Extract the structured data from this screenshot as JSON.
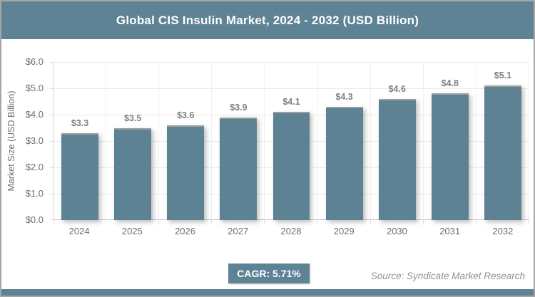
{
  "header": {
    "title": "Global CIS Insulin Market, 2024 - 2032 (USD Billion)"
  },
  "chart_data": {
    "type": "bar",
    "title": "Global CIS Insulin Market, 2024 - 2032 (USD Billion)",
    "categories": [
      "2024",
      "2025",
      "2026",
      "2027",
      "2028",
      "2029",
      "2030",
      "2031",
      "2032"
    ],
    "values": [
      3.3,
      3.5,
      3.6,
      3.9,
      4.1,
      4.3,
      4.6,
      4.8,
      5.1
    ],
    "value_labels": [
      "$3.3",
      "$3.5",
      "$3.6",
      "$3.9",
      "$4.1",
      "$4.3",
      "$4.6",
      "$4.8",
      "$5.1"
    ],
    "xlabel": "",
    "ylabel": "Market Size (USD Billion)",
    "ylim": [
      0,
      6
    ],
    "y_ticks": [
      "$0.0",
      "$1.0",
      "$2.0",
      "$3.0",
      "$4.0",
      "$5.0",
      "$6.0"
    ],
    "grid": true,
    "legend": false
  },
  "footer": {
    "cagr_label": "CAGR: 5.71%",
    "source": "Source: Syndicate Market Research"
  },
  "colors": {
    "accent": "#5e8394",
    "bar": "#5d8294",
    "value_label": "#7f7f7f",
    "axis_text": "#6e6e6e",
    "gridline": "#e9e9e9",
    "frame_border": "#a6a6a6",
    "source_text": "#8b9296",
    "title_text": "#ffffff"
  }
}
